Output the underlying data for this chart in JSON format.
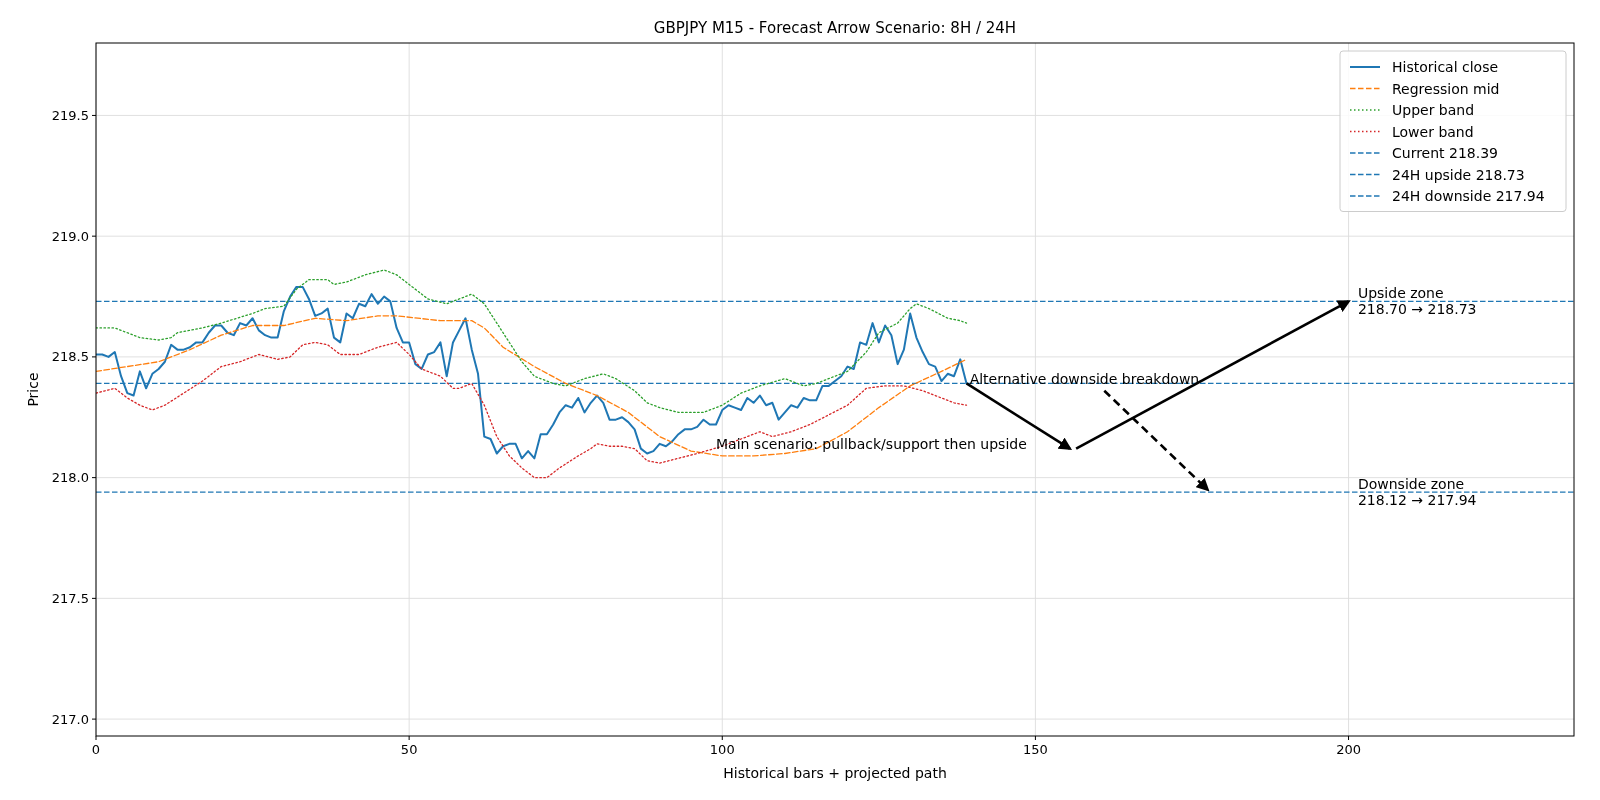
{
  "chart_data": {
    "type": "line",
    "title": "GBPJPY M15 - Forecast Arrow Scenario: 8H / 24H",
    "xlabel": "Historical bars + projected path",
    "ylabel": "Price",
    "xlim": [
      0,
      236
    ],
    "xticks": [
      0,
      50,
      100,
      150,
      200
    ],
    "ylim": [
      216.93,
      219.8
    ],
    "yticks": [
      {
        "value": 217,
        "label": "217.0"
      },
      {
        "value": 217.5,
        "label": "217.5"
      },
      {
        "value": 218,
        "label": "218.0"
      },
      {
        "value": 218.5,
        "label": "218.5"
      },
      {
        "value": 219,
        "label": "219.0"
      },
      {
        "value": 219.5,
        "label": "219.5"
      }
    ],
    "grid": true,
    "legend": "top right",
    "series": [
      {
        "name": "Historical close",
        "color": "#1f77b4",
        "line_style": "solid",
        "x": [
          0,
          1,
          2,
          3,
          4,
          5,
          6,
          7,
          8,
          9,
          10,
          11,
          12,
          13,
          14,
          15,
          16,
          17,
          18,
          19,
          20,
          21,
          22,
          23,
          24,
          25,
          26,
          27,
          28,
          29,
          30,
          31,
          32,
          33,
          34,
          35,
          36,
          37,
          38,
          39,
          40,
          41,
          42,
          43,
          44,
          45,
          46,
          47,
          48,
          49,
          50,
          51,
          52,
          53,
          54,
          55,
          56,
          57,
          58,
          59,
          60,
          61,
          62,
          63,
          64,
          65,
          66,
          67,
          68,
          69,
          70,
          71,
          72,
          73,
          74,
          75,
          76,
          77,
          78,
          79,
          80,
          81,
          82,
          83,
          84,
          85,
          86,
          87,
          88,
          89,
          90,
          91,
          92,
          93,
          94,
          95,
          96,
          97,
          98,
          99,
          100,
          101,
          102,
          103,
          104,
          105,
          106,
          107,
          108,
          109,
          110,
          111,
          112,
          113,
          114,
          115,
          116,
          117,
          118,
          119,
          120,
          121,
          122,
          123,
          124,
          125,
          126,
          127,
          128,
          129,
          130,
          131,
          132,
          133,
          134,
          135,
          136,
          137,
          138,
          139
        ],
        "values": [
          218.51,
          218.51,
          218.5,
          218.52,
          218.42,
          218.35,
          218.34,
          218.44,
          218.37,
          218.43,
          218.45,
          218.48,
          218.55,
          218.53,
          218.53,
          218.54,
          218.56,
          218.56,
          218.6,
          218.63,
          218.63,
          218.6,
          218.59,
          218.64,
          218.63,
          218.66,
          218.61,
          218.59,
          218.58,
          218.58,
          218.69,
          218.75,
          218.79,
          218.79,
          218.74,
          218.67,
          218.68,
          218.7,
          218.58,
          218.56,
          218.68,
          218.66,
          218.72,
          218.71,
          218.76,
          218.72,
          218.75,
          218.73,
          218.62,
          218.56,
          218.56,
          218.47,
          218.45,
          218.51,
          218.52,
          218.56,
          218.42,
          218.56,
          218.61,
          218.66,
          218.53,
          218.43,
          218.17,
          218.16,
          218.1,
          218.13,
          218.14,
          218.14,
          218.08,
          218.11,
          218.08,
          218.18,
          218.18,
          218.22,
          218.27,
          218.3,
          218.29,
          218.33,
          218.27,
          218.31,
          218.34,
          218.31,
          218.24,
          218.24,
          218.25,
          218.23,
          218.2,
          218.12,
          218.1,
          218.11,
          218.14,
          218.13,
          218.15,
          218.18,
          218.2,
          218.2,
          218.21,
          218.24,
          218.22,
          218.22,
          218.28,
          218.3,
          218.29,
          218.28,
          218.33,
          218.31,
          218.34,
          218.3,
          218.31,
          218.24,
          218.27,
          218.3,
          218.29,
          218.33,
          218.32,
          218.32,
          218.38,
          218.38,
          218.4,
          218.42,
          218.46,
          218.45,
          218.56,
          218.55,
          218.64,
          218.56,
          218.63,
          218.59,
          218.47,
          218.53,
          218.68,
          218.58,
          218.52,
          218.47,
          218.46,
          218.4,
          218.43,
          218.42,
          218.49,
          218.39
        ]
      },
      {
        "name": "Regression mid",
        "color": "#ff7f0e",
        "line_style": "dashed",
        "x": [
          0,
          5,
          10,
          15,
          20,
          25,
          30,
          35,
          40,
          45,
          48,
          55,
          60,
          62,
          65,
          70,
          75,
          80,
          85,
          90,
          95,
          100,
          105,
          110,
          115,
          120,
          125,
          130,
          135,
          139
        ],
        "values": [
          218.44,
          218.46,
          218.48,
          218.53,
          218.59,
          218.63,
          218.63,
          218.66,
          218.65,
          218.67,
          218.67,
          218.65,
          218.65,
          218.62,
          218.54,
          218.46,
          218.39,
          218.34,
          218.27,
          218.17,
          218.11,
          218.09,
          218.09,
          218.1,
          218.12,
          218.19,
          218.29,
          218.38,
          218.44,
          218.49
        ]
      },
      {
        "name": "Upper band",
        "color": "#2ca02c",
        "line_style": "dotted",
        "x": [
          0,
          3,
          5,
          7,
          10,
          12,
          13,
          17,
          20,
          25,
          27,
          30,
          32,
          34,
          37,
          38,
          40,
          43,
          46,
          48,
          50,
          53,
          56,
          58,
          60,
          62,
          65,
          68,
          70,
          73,
          75,
          78,
          81,
          83,
          86,
          88,
          90,
          93,
          97,
          100,
          103,
          106,
          110,
          113,
          115,
          118,
          120,
          123,
          125,
          128,
          130,
          131,
          133,
          136,
          138,
          139
        ],
        "values": [
          218.62,
          218.62,
          218.6,
          218.58,
          218.57,
          218.58,
          218.6,
          218.62,
          218.64,
          218.68,
          218.7,
          218.71,
          218.78,
          218.82,
          218.82,
          218.8,
          218.81,
          218.84,
          218.86,
          218.84,
          218.8,
          218.74,
          218.72,
          218.74,
          218.76,
          218.72,
          218.6,
          218.48,
          218.42,
          218.39,
          218.38,
          218.41,
          218.43,
          218.41,
          218.36,
          218.31,
          218.29,
          218.27,
          218.27,
          218.3,
          218.35,
          218.38,
          218.41,
          218.38,
          218.39,
          218.42,
          218.44,
          218.52,
          218.6,
          218.64,
          218.7,
          218.72,
          218.7,
          218.66,
          218.65,
          218.64
        ]
      },
      {
        "name": "Lower band",
        "color": "#d62728",
        "line_style": "dotted",
        "x": [
          0,
          3,
          5,
          7,
          9,
          11,
          14,
          17,
          20,
          23,
          26,
          29,
          31,
          33,
          35,
          37,
          39,
          42,
          45,
          48,
          50,
          52,
          55,
          57,
          58,
          60,
          62,
          64,
          66,
          68,
          70,
          72,
          74,
          77,
          79,
          80,
          82,
          84,
          86,
          88,
          90,
          93,
          96,
          100,
          103,
          106,
          108,
          111,
          114,
          117,
          120,
          123,
          126,
          129,
          132,
          135,
          137,
          139
        ],
        "values": [
          218.35,
          218.37,
          218.33,
          218.3,
          218.28,
          218.3,
          218.35,
          218.4,
          218.46,
          218.48,
          218.51,
          218.49,
          218.5,
          218.55,
          218.56,
          218.55,
          218.51,
          218.51,
          218.54,
          218.56,
          218.51,
          218.45,
          218.42,
          218.37,
          218.37,
          218.39,
          218.3,
          218.17,
          218.09,
          218.04,
          218,
          218,
          218.04,
          218.09,
          218.12,
          218.14,
          218.13,
          218.13,
          218.12,
          218.07,
          218.06,
          218.08,
          218.1,
          218.13,
          218.16,
          218.19,
          218.17,
          218.19,
          218.22,
          218.26,
          218.3,
          218.37,
          218.38,
          218.38,
          218.36,
          218.33,
          218.31,
          218.3
        ]
      },
      {
        "color": "#000000",
        "line_style": "solid",
        "x": [
          139,
          155.5
        ],
        "values": [
          218.39,
          218.12
        ]
      },
      {
        "color": "#000000",
        "line_style": "solid",
        "x": [
          156.5,
          200
        ],
        "values": [
          218.12,
          218.73
        ]
      },
      {
        "color": "#000000",
        "line_style": "dashed",
        "x": [
          161,
          177.5
        ],
        "values": [
          218.36,
          217.95
        ]
      }
    ],
    "ref_lines": [
      {
        "axis": "y",
        "value": 218.39,
        "label": "Current 218.39",
        "color": "#1f77b4",
        "line_style": "dashed"
      },
      {
        "axis": "y",
        "value": 218.73,
        "label": "24H upside 218.73",
        "color": "#1f77b4",
        "line_style": "dashed"
      },
      {
        "axis": "y",
        "value": 217.94,
        "label": "24H downside 217.94",
        "color": "#1f77b4",
        "line_style": "dashed"
      }
    ],
    "annotations": [
      {
        "text": "Main scenario: pullback/support then upside",
        "x": 99,
        "y": 218.14
      },
      {
        "text": "Alternative downside breakdown",
        "x": 139.5,
        "y": 218.41
      },
      {
        "text": "Upside zone\n218.70 → 218.73",
        "x": 201.5,
        "y": 218.73
      },
      {
        "text": "Downside zone\n218.12 → 217.94",
        "x": 201.5,
        "y": 217.94
      }
    ]
  }
}
